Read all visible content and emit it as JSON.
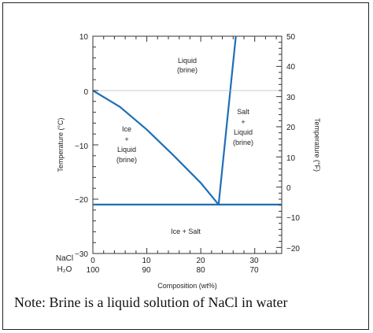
{
  "diagram": {
    "y_axis_left_label": "Temperature (°C)",
    "y_axis_right_label": "Temperature (°F)",
    "x_axis_label": "Composition (wt%)",
    "left_ticks": [
      "10",
      "0",
      "−10",
      "−20",
      "−30"
    ],
    "right_ticks": [
      "50",
      "40",
      "30",
      "20",
      "10",
      "0",
      "−10",
      "−20"
    ],
    "nacl_label": "NaCl",
    "h2o_label": "H₂O",
    "nacl_ticks": [
      "0",
      "10",
      "20",
      "30"
    ],
    "h2o_ticks": [
      "100",
      "90",
      "80",
      "70"
    ],
    "region_liquid": [
      "Liquid",
      "(brine)"
    ],
    "region_ice_liquid": [
      "Ice",
      "+",
      "Liquid",
      "(brine)"
    ],
    "region_salt_liquid": [
      "Salt",
      "+",
      "Liquid",
      "(brine)"
    ],
    "region_ice_salt": "Ice + Salt",
    "line_color": "#1f6fb5"
  },
  "chart_data": {
    "type": "line",
    "xlabel": "Composition (wt%)",
    "ylabel": "Temperature (°C)",
    "xlim": [
      0,
      35
    ],
    "ylim": [
      -30,
      10
    ],
    "series": [
      {
        "x": [
          0,
          5,
          10,
          15,
          20,
          23.3
        ],
        "y": [
          0,
          -3,
          -7.2,
          -12,
          -17,
          -21
        ]
      },
      {
        "x": [
          23.3,
          26.5
        ],
        "y": [
          -21,
          10
        ]
      },
      {
        "x": [
          0,
          35
        ],
        "y": [
          -21,
          -21
        ]
      }
    ]
  },
  "note": "Note: Brine is a liquid solution of NaCl in water"
}
